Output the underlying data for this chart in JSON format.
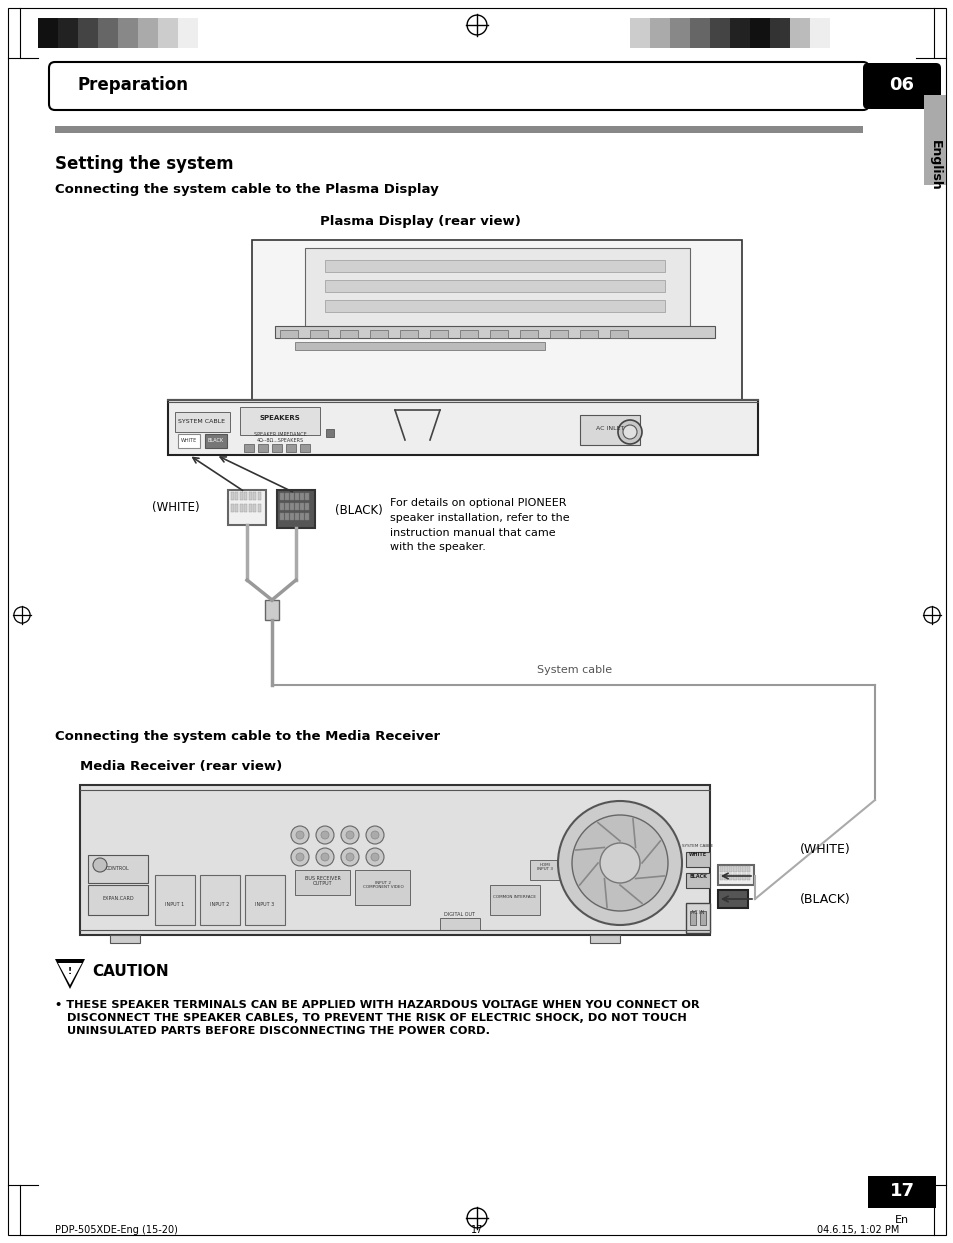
{
  "bg_color": "#ffffff",
  "title_bar_text": "Preparation",
  "chapter_num": "06",
  "section_title": "Setting the system",
  "subsection1": "Connecting the system cable to the Plasma Display",
  "subsection2": "Connecting the system cable to the Media Receiver",
  "diagram1_title": "Plasma Display (rear view)",
  "diagram2_title": "Media Receiver (rear view)",
  "system_cable_label": "System cable",
  "white_label": "(WHITE)",
  "black_label": "(BLACK)",
  "white_label2": "(WHITE)",
  "black_label2": "(BLACK)",
  "side_label": "English",
  "caution_text": "CAUTION",
  "caution_line1": "• THESE SPEAKER TERMINALS CAN BE APPLIED WITH HAZARDOUS VOLTAGE WHEN YOU CONNECT OR",
  "caution_line2": "   DISCONNECT THE SPEAKER CABLES, TO PREVENT THE RISK OF ELECTRIC SHOCK, DO NOT TOUCH",
  "caution_line3": "   UNINSULATED PARTS BEFORE DISCONNECTING THE POWER CORD.",
  "optional_text": "For details on optional PIONEER\nspeaker installation, refer to the\ninstruction manual that came\nwith the speaker.",
  "page_number": "17",
  "page_num_sub": "En",
  "footer_left": "PDP-505XDE-Eng (15-20)",
  "footer_center": "17",
  "footer_right": "04.6.15, 1:02 PM",
  "header_left_colors": [
    "#111111",
    "#222222",
    "#444444",
    "#666666",
    "#888888",
    "#aaaaaa",
    "#cccccc",
    "#eeeeee"
  ],
  "header_right_colors": [
    "#cccccc",
    "#aaaaaa",
    "#888888",
    "#666666",
    "#444444",
    "#222222",
    "#111111",
    "#333333",
    "#bbbbbb",
    "#eeeeee"
  ]
}
